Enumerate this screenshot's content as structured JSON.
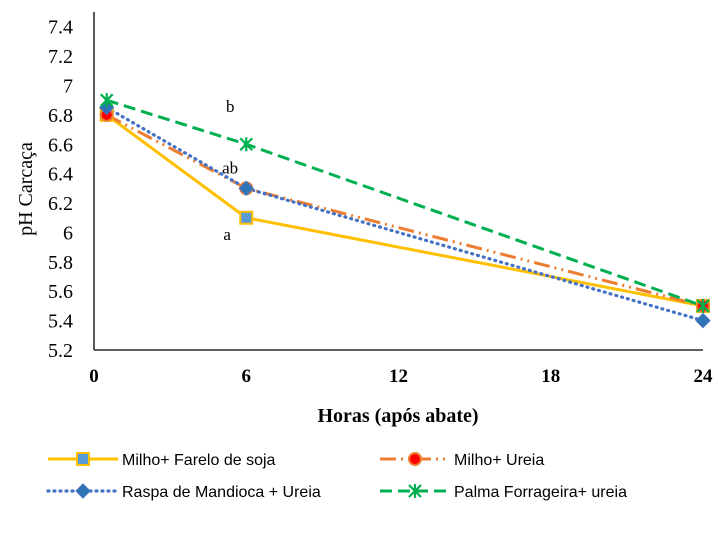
{
  "chart_data": {
    "type": "line",
    "title": "",
    "xlabel": "Horas (após abate)",
    "ylabel": "pH Carcaça",
    "x_ticks": [
      0,
      6,
      12,
      18,
      24
    ],
    "y_ticks": [
      "5.2",
      "5.4",
      "5.6",
      "5.8",
      "6",
      "6.2",
      "6.4",
      "6.6",
      "6.8",
      "7",
      "7.2",
      "7.4"
    ],
    "xlim": [
      0,
      24
    ],
    "ylim": [
      5.2,
      7.5
    ],
    "grid": false,
    "legend_position": "bottom",
    "x": [
      0.5,
      6,
      24
    ],
    "series": [
      {
        "name": "Milho+ Farelo de soja",
        "values": [
          6.8,
          6.1,
          5.5
        ],
        "color": "#FFC000",
        "dash": "solid",
        "marker": "square",
        "marker_fill": "#5B9BD5"
      },
      {
        "name": "Milho+ Ureia",
        "values": [
          6.8,
          6.3,
          5.5
        ],
        "color": "#ED7D31",
        "dash": "long-dash-dot-dot",
        "marker": "circle",
        "marker_fill": "#FF0000"
      },
      {
        "name": "Raspa de Mandioca + Ureia",
        "values": [
          6.85,
          6.3,
          5.4
        ],
        "color": "#4472C4",
        "dash": "round-dot",
        "marker": "diamond",
        "marker_fill": "#2E75B6"
      },
      {
        "name": "Palma Forrageira+ ureia",
        "values": [
          6.9,
          6.6,
          5.5
        ],
        "color": "#00B050",
        "dash": "dash",
        "marker": "x-star",
        "marker_fill": "#00B050"
      }
    ],
    "annotations": [
      {
        "text": "b",
        "x": 5.2,
        "y": 6.82
      },
      {
        "text": "ab",
        "x": 5.05,
        "y": 6.4
      },
      {
        "text": "a",
        "x": 5.1,
        "y": 5.95
      }
    ]
  }
}
